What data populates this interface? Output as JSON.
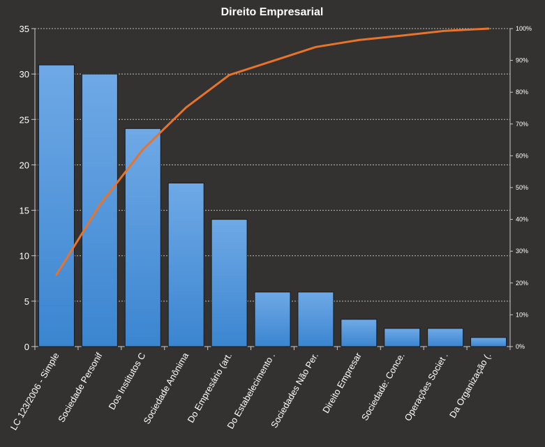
{
  "chart_data": {
    "type": "bar",
    "title": "Direito  Empresarial",
    "categories": [
      "LC 123/2006 - Simple",
      "Sociedade Personif",
      "Dos Institutos C",
      "Sociedade Anônima",
      "Do Empresário (art.",
      "Do Estabelecimento .",
      "Sociedades Não Per.",
      "Direito Empresar",
      "Sociedade: Conce.",
      "Operações Societ .",
      "Da Organização (."
    ],
    "series": [
      {
        "type": "bar",
        "values": [
          31,
          30,
          24,
          18,
          14,
          6,
          6,
          3,
          2,
          2,
          1
        ],
        "color": "#4a90d9"
      },
      {
        "type": "line",
        "axis": "secondary",
        "values": [
          22.6,
          44.5,
          62.0,
          75.2,
          85.4,
          89.8,
          94.2,
          96.4,
          97.8,
          99.3,
          100
        ],
        "color": "#e8732a"
      }
    ],
    "ylim": [
      0,
      35
    ],
    "y_ticks": [
      "0",
      "5",
      "10",
      "15",
      "20",
      "25",
      "30",
      "35"
    ],
    "y2lim": [
      0,
      100
    ],
    "y2_ticks": [
      "0%",
      "10%",
      "20%",
      "30%",
      "40%",
      "50%",
      "60%",
      "70%",
      "80%",
      "90%",
      "100%"
    ],
    "grid": true,
    "legend": "none"
  }
}
